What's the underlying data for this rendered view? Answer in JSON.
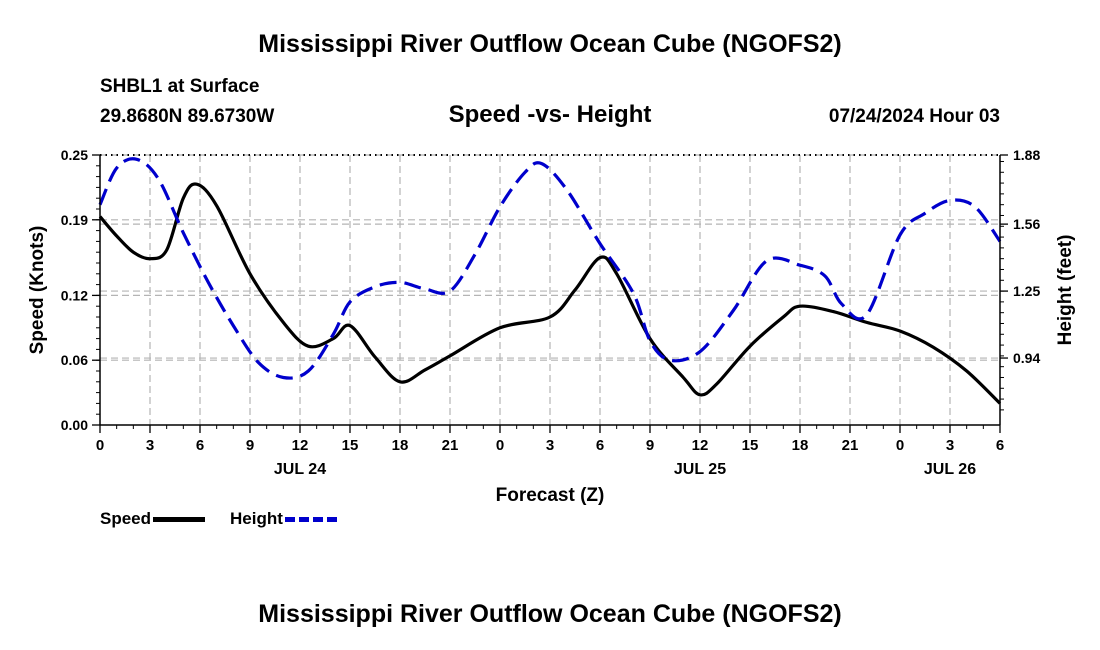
{
  "header": {
    "title": "Mississippi River Outflow Ocean Cube (NGOFS2)",
    "station": "SHBL1 at Surface",
    "coords": "29.8680N  89.6730W",
    "date": "07/24/2024 Hour 03"
  },
  "footer": {
    "title": "Mississippi River Outflow Ocean Cube (NGOFS2)"
  },
  "legend": {
    "speed_label": "Speed",
    "height_label": "Height",
    "speed_color": "#000000",
    "height_color": "#0000cc"
  },
  "chart_data": {
    "type": "line",
    "title": "Speed -vs- Height",
    "xlabel": "Forecast (Z)",
    "ylabel": "Speed (Knots)",
    "y2label": "Height (feet)",
    "xlim": [
      0,
      54
    ],
    "ylim": [
      0,
      0.25
    ],
    "y2lim": [
      0.63,
      1.88
    ],
    "x_ticks": [
      0,
      3,
      6,
      9,
      12,
      15,
      18,
      21,
      24,
      27,
      30,
      33,
      36,
      39,
      42,
      45,
      48,
      51,
      54
    ],
    "x_tick_labels": [
      "0",
      "3",
      "6",
      "9",
      "12",
      "15",
      "18",
      "21",
      "0",
      "3",
      "6",
      "9",
      "12",
      "15",
      "18",
      "21",
      "0",
      "3",
      "6"
    ],
    "date_labels": [
      {
        "x": 12,
        "label": "JUL 24"
      },
      {
        "x": 36,
        "label": "JUL 25"
      },
      {
        "x": 51,
        "label": "JUL 26"
      }
    ],
    "y_ticks": [
      0.0,
      0.06,
      0.12,
      0.19,
      0.25
    ],
    "y_tick_labels": [
      "0.00",
      "0.06",
      "0.12",
      "0.19",
      "0.25"
    ],
    "y2_ticks": [
      0.94,
      1.25,
      1.56,
      1.88
    ],
    "y2_tick_labels": [
      "0.94",
      "1.25",
      "1.56",
      "1.88"
    ],
    "grid": true,
    "series": [
      {
        "name": "Speed",
        "axis": "left",
        "color": "#000000",
        "dash": "solid",
        "x": [
          0,
          1,
          2,
          3,
          4,
          5,
          5.8,
          7,
          9,
          11,
          12.5,
          14,
          15,
          16.5,
          18,
          19.5,
          21,
          24,
          27,
          28.5,
          30,
          31,
          33,
          35,
          36,
          37,
          39,
          41,
          42,
          44,
          46,
          48,
          50,
          52,
          54
        ],
        "y": [
          0.193,
          0.175,
          0.16,
          0.154,
          0.162,
          0.21,
          0.223,
          0.203,
          0.14,
          0.095,
          0.073,
          0.08,
          0.092,
          0.063,
          0.04,
          0.051,
          0.064,
          0.09,
          0.1,
          0.125,
          0.155,
          0.14,
          0.08,
          0.044,
          0.028,
          0.038,
          0.073,
          0.1,
          0.11,
          0.105,
          0.095,
          0.087,
          0.072,
          0.05,
          0.02
        ]
      },
      {
        "name": "Height",
        "axis": "right",
        "color": "#0000cc",
        "dash": "dashed",
        "x": [
          0,
          1,
          2.2,
          3.5,
          5,
          6.5,
          8,
          9.5,
          11,
          12.5,
          14,
          15,
          16.5,
          18,
          19.5,
          21,
          22.5,
          24,
          25.5,
          26.5,
          28,
          30,
          32,
          33,
          34.2,
          36,
          38,
          40,
          42,
          43.5,
          44.5,
          46,
          48,
          49.5,
          51,
          52.5,
          54
        ],
        "y": [
          1.65,
          1.82,
          1.86,
          1.77,
          1.52,
          1.29,
          1.09,
          0.92,
          0.85,
          0.88,
          1.05,
          1.2,
          1.27,
          1.29,
          1.26,
          1.25,
          1.42,
          1.64,
          1.8,
          1.84,
          1.72,
          1.47,
          1.24,
          1.02,
          0.93,
          0.97,
          1.16,
          1.39,
          1.37,
          1.32,
          1.19,
          1.14,
          1.51,
          1.61,
          1.67,
          1.64,
          1.48
        ]
      }
    ]
  }
}
